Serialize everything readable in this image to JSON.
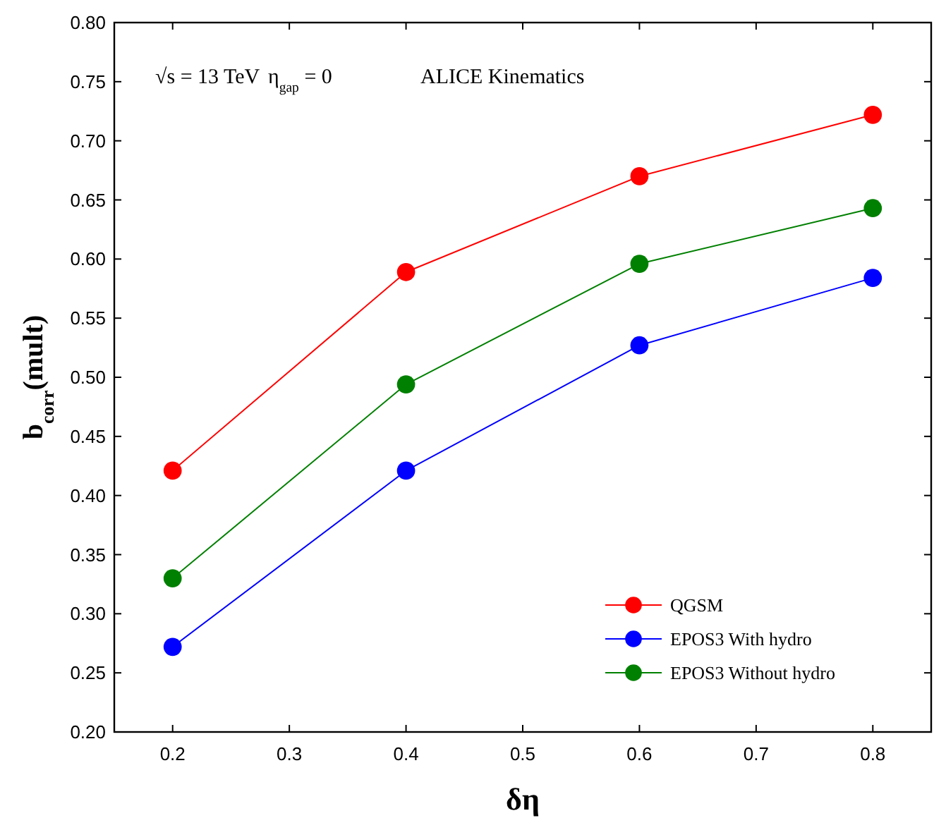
{
  "chart_data": {
    "type": "line",
    "xlabel": "δη",
    "ylabel": "b$_{corr}$(mult)",
    "annotations": [
      "√s = 13 TeV",
      "η$_{gap}$ = 0",
      "ALICE Kinematics"
    ],
    "x": [
      0.2,
      0.4,
      0.6,
      0.8
    ],
    "series": [
      {
        "name": "QGSM",
        "color": "#ff0000",
        "values": [
          0.421,
          0.589,
          0.67,
          0.722
        ]
      },
      {
        "name": "EPOS3 With hydro",
        "color": "#0000ff",
        "values": [
          0.272,
          0.421,
          0.527,
          0.584
        ]
      },
      {
        "name": "EPOS3 Without hydro",
        "color": "#008000",
        "values": [
          0.33,
          0.494,
          0.596,
          0.643
        ]
      }
    ],
    "xlim": [
      0.15,
      0.85
    ],
    "xticks": [
      0.2,
      0.3,
      0.4,
      0.5,
      0.6,
      0.7,
      0.8
    ],
    "ylim": [
      0.2,
      0.8
    ],
    "yticks": [
      {
        "value": 0.2,
        "label": "0.20"
      },
      {
        "value": 0.25,
        "label": "0.25"
      },
      {
        "value": 0.3,
        "label": "0.30"
      },
      {
        "value": 0.35,
        "label": "0.35"
      },
      {
        "value": 0.4,
        "label": "0.40"
      },
      {
        "value": 0.45,
        "label": "0.45"
      },
      {
        "value": 0.5,
        "label": "0.50"
      },
      {
        "value": 0.55,
        "label": "0.55"
      },
      {
        "value": 0.6,
        "label": "0.60"
      },
      {
        "value": 0.65,
        "label": "0.65"
      },
      {
        "value": 0.7,
        "label": "0.70"
      },
      {
        "value": 0.75,
        "label": "0.75"
      },
      {
        "value": 0.8,
        "label": "0.80"
      }
    ],
    "grid": false,
    "legend": "bottom right",
    "marker": "circle",
    "line_style": "solid"
  }
}
